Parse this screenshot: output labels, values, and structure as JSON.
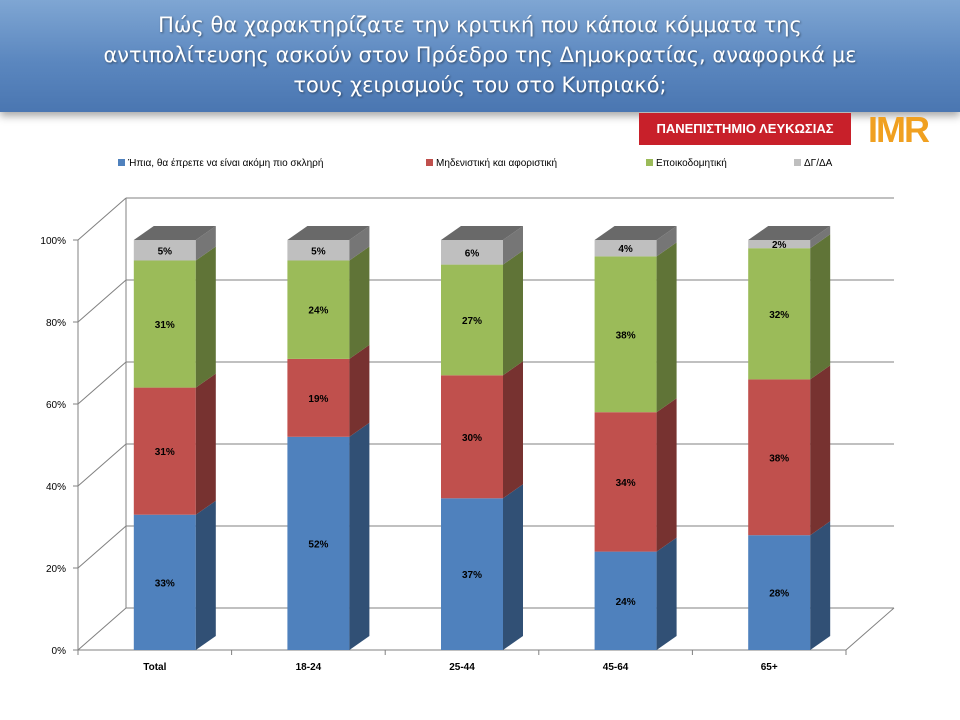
{
  "header": {
    "title_lines": [
      "Πώς θα χαρακτηρίζατε την κριτική που κάποια κόμματα της",
      "αντιπολίτευσης ασκούν στον Πρόεδρο της Δημοκρατίας, αναφορικά με",
      "τους χειρισμούς του στο Κυπριακό;"
    ]
  },
  "logos": {
    "university": "ΠΑΝΕΠΙΣΤΗΜΙΟ ΛΕΥΚΩΣΙΑΣ",
    "imr": "IMR"
  },
  "chart_data": {
    "type": "bar",
    "stacked": true,
    "percent": true,
    "categories": [
      "Total",
      "18-24",
      "25-44",
      "45-64",
      "65+"
    ],
    "series": [
      {
        "name": "Ήπια, θα έπρεπε να είναι ακόμη πιο σκληρή",
        "color": "#4f81bd",
        "values": [
          33,
          52,
          37,
          24,
          28
        ]
      },
      {
        "name": "Μηδενιστική και αφοριστική",
        "color": "#c0504d",
        "values": [
          31,
          19,
          30,
          34,
          38
        ]
      },
      {
        "name": "Εποικοδομητική",
        "color": "#9bbb59",
        "values": [
          31,
          24,
          27,
          38,
          32
        ]
      },
      {
        "name": "ΔΓ/ΔΑ",
        "color": "#bfbfbf",
        "values": [
          5,
          5,
          6,
          4,
          2
        ]
      }
    ],
    "data_labels": [
      [
        "33%",
        "52%",
        "37%",
        "24%",
        "28%"
      ],
      [
        "31%",
        "19%",
        "30%",
        "34%",
        "38%"
      ],
      [
        "31%",
        "24%",
        "27%",
        "38%",
        "32%"
      ],
      [
        "5%",
        "5%",
        "6%",
        "4%",
        "2%"
      ]
    ],
    "y_ticks": [
      "0%",
      "20%",
      "40%",
      "60%",
      "80%",
      "100%"
    ],
    "ylim": [
      0,
      100
    ],
    "grid": true,
    "legend_position": "top"
  }
}
